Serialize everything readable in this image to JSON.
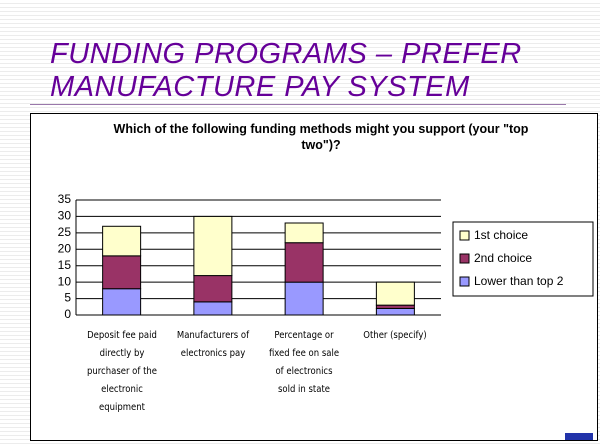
{
  "slide": {
    "title": "FUNDING PROGRAMS – PREFER MANUFACTURE PAY SYSTEM"
  },
  "chart_data": {
    "type": "stacked_bar",
    "title": "Which of the following funding methods might you support (your \"top two\")?",
    "categories": [
      "Deposit fee paid directly by purchaser of the electronic equipment",
      "Manufacturers of electronics pay",
      "Percentage or fixed fee on sale of electronics sold in state",
      "Other (specify)"
    ],
    "series": [
      {
        "name": "Lower than top 2",
        "color": "#9999ff",
        "values": [
          8,
          4,
          10,
          2
        ]
      },
      {
        "name": "2nd choice",
        "color": "#993366",
        "values": [
          10,
          8,
          12,
          1
        ]
      },
      {
        "name": "1st choice",
        "color": "#ffffcc",
        "values": [
          9,
          18,
          6,
          7
        ]
      }
    ],
    "ylim": [
      0,
      35
    ],
    "yticks": [
      0,
      5,
      10,
      15,
      20,
      25,
      30,
      35
    ],
    "grid": true,
    "legend": "right"
  }
}
